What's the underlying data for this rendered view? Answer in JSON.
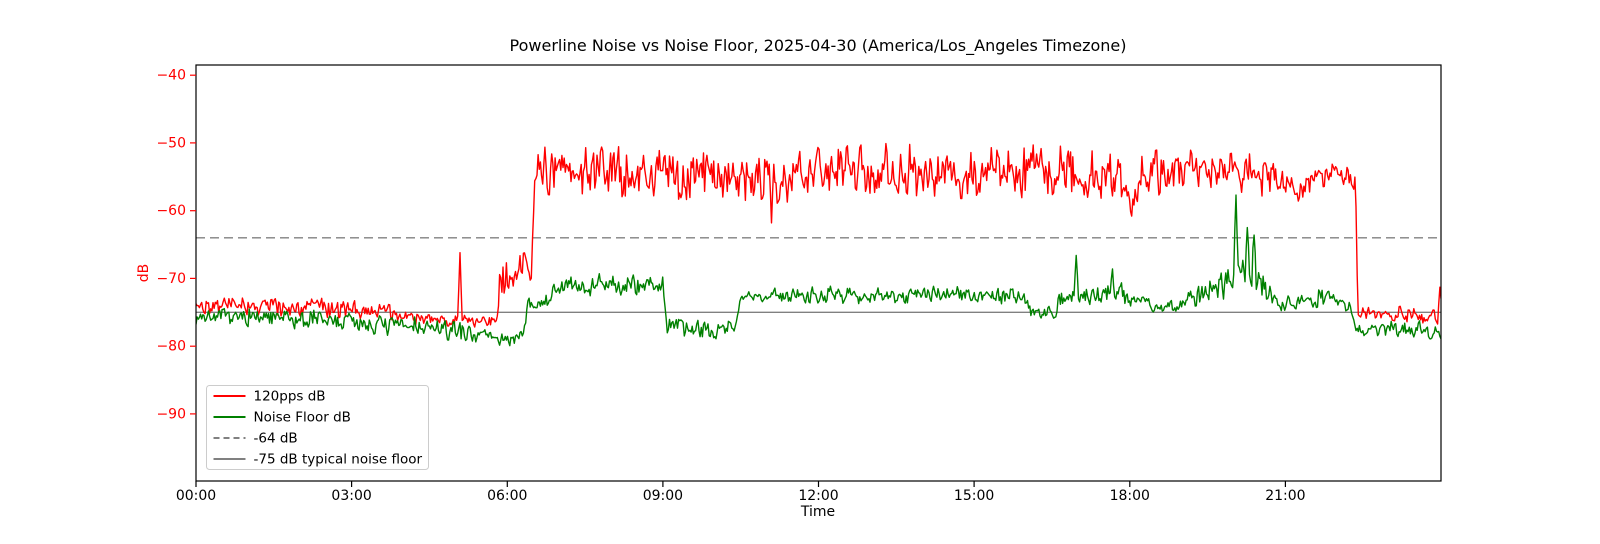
{
  "figure": {
    "background": "#ffffff"
  },
  "chart_data": {
    "type": "line",
    "title": "Powerline Noise vs Noise Floor, 2025-04-30 (America/Los_Angeles Timezone)",
    "xlabel": "Time",
    "ylabel": "dB",
    "xlim_hours": [
      0,
      24
    ],
    "ylim": [
      -99.9,
      -38.5
    ],
    "grid": false,
    "x_ticks": [
      {
        "hour": 0,
        "label": "00:00"
      },
      {
        "hour": 3,
        "label": "03:00"
      },
      {
        "hour": 6,
        "label": "06:00"
      },
      {
        "hour": 9,
        "label": "09:00"
      },
      {
        "hour": 12,
        "label": "12:00"
      },
      {
        "hour": 15,
        "label": "15:00"
      },
      {
        "hour": 18,
        "label": "18:00"
      },
      {
        "hour": 21,
        "label": "21:00"
      }
    ],
    "y_ticks": [
      {
        "value": -40,
        "label": "−40"
      },
      {
        "value": -50,
        "label": "−50"
      },
      {
        "value": -60,
        "label": "−60"
      },
      {
        "value": -70,
        "label": "−70"
      },
      {
        "value": -80,
        "label": "−80"
      },
      {
        "value": -90,
        "label": "−90"
      }
    ],
    "y_tick_color": "#ff0000",
    "x_tick_color": "#000000",
    "reference_lines": [
      {
        "label": "-64 dB",
        "value": -64,
        "style": "dashed",
        "color": "#808080"
      },
      {
        "label": "-75 dB typical noise floor",
        "value": -75,
        "style": "solid",
        "color": "#808080"
      }
    ],
    "series": [
      {
        "name": "120pps dB",
        "color": "#ff0000",
        "linewidth": 1.4,
        "seed": 42,
        "envelope": [
          [
            0.0,
            -73.8,
            0.8
          ],
          [
            1.0,
            -74.0,
            0.8
          ],
          [
            2.2,
            -74.3,
            0.8
          ],
          [
            3.2,
            -74.4,
            0.9
          ],
          [
            4.0,
            -75.6,
            0.7
          ],
          [
            4.6,
            -76.1,
            0.5
          ],
          [
            5.3,
            -76.3,
            0.5
          ],
          [
            5.8,
            -76.4,
            0.5
          ],
          [
            5.86,
            -70.8,
            1.5
          ],
          [
            6.15,
            -69.8,
            1.9
          ],
          [
            6.46,
            -69.4,
            2.0
          ],
          [
            6.52,
            -53.9,
            2.1
          ],
          [
            7.6,
            -54.4,
            2.2
          ],
          [
            9.0,
            -54.3,
            2.3
          ],
          [
            10.6,
            -54.8,
            2.3
          ],
          [
            11.08,
            -56.2,
            1.9
          ],
          [
            11.8,
            -54.5,
            2.2
          ],
          [
            13.4,
            -53.8,
            2.2
          ],
          [
            15.0,
            -54.6,
            2.2
          ],
          [
            16.6,
            -54.0,
            2.3
          ],
          [
            17.6,
            -55.2,
            2.2
          ],
          [
            18.05,
            -56.8,
            1.8
          ],
          [
            18.3,
            -54.8,
            2.0
          ],
          [
            19.1,
            -53.4,
            1.9
          ],
          [
            19.9,
            -54.0,
            1.8
          ],
          [
            20.6,
            -55.0,
            1.7
          ],
          [
            21.05,
            -56.8,
            1.3
          ],
          [
            21.3,
            -57.8,
            1.0
          ],
          [
            21.5,
            -54.9,
            1.2
          ],
          [
            21.9,
            -54.4,
            1.0
          ],
          [
            22.2,
            -55.0,
            0.9
          ],
          [
            22.35,
            -55.4,
            0.9
          ],
          [
            22.4,
            -75.4,
            0.7
          ],
          [
            23.1,
            -75.4,
            0.8
          ],
          [
            23.8,
            -75.9,
            0.8
          ],
          [
            24.0,
            -75.5,
            1.0
          ]
        ],
        "spikes": [
          [
            5.08,
            -66.2
          ],
          [
            11.1,
            -61.8
          ],
          [
            18.04,
            -60.8
          ],
          [
            23.97,
            -71.3
          ]
        ]
      },
      {
        "name": "Noise Floor dB",
        "color": "#008000",
        "linewidth": 1.4,
        "seed": 7,
        "envelope": [
          [
            0.0,
            -75.6,
            0.7
          ],
          [
            1.5,
            -75.9,
            0.8
          ],
          [
            3.0,
            -76.4,
            0.9
          ],
          [
            4.2,
            -77.2,
            0.9
          ],
          [
            5.0,
            -77.8,
            0.8
          ],
          [
            5.6,
            -78.3,
            0.7
          ],
          [
            5.95,
            -79.1,
            0.6
          ],
          [
            6.3,
            -78.6,
            0.5
          ],
          [
            6.4,
            -73.9,
            0.6
          ],
          [
            6.8,
            -73.6,
            0.7
          ],
          [
            6.9,
            -71.4,
            0.8
          ],
          [
            7.7,
            -71.0,
            0.9
          ],
          [
            8.4,
            -70.9,
            0.9
          ],
          [
            9.0,
            -70.9,
            0.8
          ],
          [
            9.08,
            -77.4,
            0.9
          ],
          [
            9.9,
            -77.5,
            0.9
          ],
          [
            10.4,
            -77.2,
            0.8
          ],
          [
            10.48,
            -72.8,
            0.6
          ],
          [
            11.6,
            -72.4,
            0.7
          ],
          [
            13.2,
            -72.4,
            0.8
          ],
          [
            14.6,
            -72.4,
            0.7
          ],
          [
            15.9,
            -72.7,
            0.7
          ],
          [
            16.15,
            -74.9,
            0.6
          ],
          [
            16.55,
            -74.5,
            0.8
          ],
          [
            16.9,
            -71.9,
            1.0
          ],
          [
            17.2,
            -72.6,
            0.8
          ],
          [
            17.7,
            -72.0,
            1.0
          ],
          [
            18.3,
            -73.1,
            0.8
          ],
          [
            18.65,
            -74.8,
            0.6
          ],
          [
            19.15,
            -73.0,
            0.9
          ],
          [
            19.55,
            -71.9,
            1.1
          ],
          [
            19.98,
            -70.2,
            1.4
          ],
          [
            20.18,
            -68.7,
            1.6
          ],
          [
            20.45,
            -70.2,
            1.3
          ],
          [
            20.65,
            -71.9,
            1.0
          ],
          [
            20.9,
            -73.6,
            0.7
          ],
          [
            21.45,
            -72.9,
            0.8
          ],
          [
            22.0,
            -73.2,
            0.7
          ],
          [
            22.26,
            -74.1,
            0.6
          ],
          [
            22.34,
            -77.6,
            0.7
          ],
          [
            23.3,
            -77.4,
            0.7
          ],
          [
            24.0,
            -77.7,
            0.8
          ]
        ],
        "spikes": [
          [
            7.78,
            -69.3
          ],
          [
            8.44,
            -69.5
          ],
          [
            16.96,
            -66.6
          ],
          [
            17.66,
            -68.6
          ],
          [
            20.05,
            -57.7
          ],
          [
            20.26,
            -62.5
          ],
          [
            20.4,
            -63.6
          ]
        ]
      }
    ],
    "legend": {
      "position": "lower left",
      "entries": [
        {
          "label": "120pps dB",
          "color": "#ff0000",
          "dash": "solid"
        },
        {
          "label": "Noise Floor dB",
          "color": "#008000",
          "dash": "solid"
        },
        {
          "label": "-64 dB",
          "color": "#808080",
          "dash": "dashed"
        },
        {
          "label": "-75 dB typical noise floor",
          "color": "#808080",
          "dash": "solid"
        }
      ]
    }
  }
}
